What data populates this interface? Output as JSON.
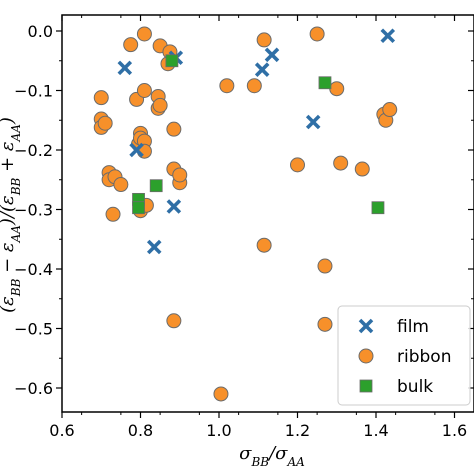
{
  "chart_data": {
    "type": "scatter",
    "xlabel": "σ_BB/σ_AA",
    "ylabel_visible_fragment": "(ε_BB − ε_AA)/(ε_BB + ε_AA)",
    "xlim": [
      0.6,
      1.65
    ],
    "ylim": [
      -0.64,
      0.03
    ],
    "x_ticks": [
      "0.6",
      "0.8",
      "1.0",
      "1.2",
      "1.4",
      "1.6"
    ],
    "x_tick_values": [
      0.6,
      0.8,
      1.0,
      1.2,
      1.4,
      1.6
    ],
    "y_ticks": [
      "0.0",
      "−0.1",
      "−0.2",
      "−0.3",
      "−0.4",
      "−0.5",
      "−0.6"
    ],
    "y_tick_values": [
      0.0,
      -0.1,
      -0.2,
      -0.3,
      -0.4,
      -0.5,
      -0.6
    ],
    "legend_position": "lower-right",
    "series": [
      {
        "name": "film",
        "marker": "x",
        "color": "#2f6fa6",
        "points": [
          [
            0.76,
            -0.062
          ],
          [
            0.79,
            -0.2
          ],
          [
            0.89,
            -0.045
          ],
          [
            0.885,
            -0.295
          ],
          [
            0.835,
            -0.363
          ],
          [
            1.11,
            -0.065
          ],
          [
            1.135,
            -0.04
          ],
          [
            1.24,
            -0.153
          ],
          [
            1.43,
            -0.008
          ]
        ]
      },
      {
        "name": "ribbon",
        "marker": "o",
        "color": "#f7902a",
        "points": [
          [
            0.7,
            -0.112
          ],
          [
            0.7,
            -0.148
          ],
          [
            0.7,
            -0.162
          ],
          [
            0.71,
            -0.155
          ],
          [
            0.72,
            -0.238
          ],
          [
            0.72,
            -0.25
          ],
          [
            0.735,
            -0.245
          ],
          [
            0.73,
            -0.308
          ],
          [
            0.75,
            -0.258
          ],
          [
            0.775,
            -0.023
          ],
          [
            0.79,
            -0.115
          ],
          [
            0.8,
            -0.172
          ],
          [
            0.795,
            -0.19
          ],
          [
            0.8,
            -0.18
          ],
          [
            0.8,
            -0.302
          ],
          [
            0.81,
            -0.005
          ],
          [
            0.81,
            -0.1
          ],
          [
            0.81,
            -0.185
          ],
          [
            0.81,
            -0.202
          ],
          [
            0.815,
            -0.293
          ],
          [
            0.845,
            -0.11
          ],
          [
            0.845,
            -0.13
          ],
          [
            0.85,
            -0.125
          ],
          [
            0.85,
            -0.025
          ],
          [
            0.87,
            -0.055
          ],
          [
            0.875,
            -0.035
          ],
          [
            0.885,
            -0.165
          ],
          [
            0.885,
            -0.232
          ],
          [
            0.885,
            -0.487
          ],
          [
            0.9,
            -0.255
          ],
          [
            0.9,
            -0.242
          ],
          [
            1.005,
            -0.61
          ],
          [
            1.02,
            -0.092
          ],
          [
            1.09,
            -0.092
          ],
          [
            1.115,
            -0.015
          ],
          [
            1.115,
            -0.36
          ],
          [
            1.2,
            -0.225
          ],
          [
            1.25,
            -0.005
          ],
          [
            1.27,
            -0.395
          ],
          [
            1.27,
            -0.493
          ],
          [
            1.3,
            -0.097
          ],
          [
            1.31,
            -0.222
          ],
          [
            1.365,
            -0.232
          ],
          [
            1.42,
            -0.14
          ],
          [
            1.425,
            -0.15
          ],
          [
            1.435,
            -0.132
          ]
        ]
      },
      {
        "name": "bulk",
        "marker": "s",
        "color": "#2ca02c",
        "points": [
          [
            0.795,
            -0.283
          ],
          [
            0.795,
            -0.297
          ],
          [
            0.84,
            -0.26
          ],
          [
            0.88,
            -0.05
          ],
          [
            1.27,
            -0.087
          ],
          [
            1.405,
            -0.297
          ]
        ]
      }
    ]
  }
}
